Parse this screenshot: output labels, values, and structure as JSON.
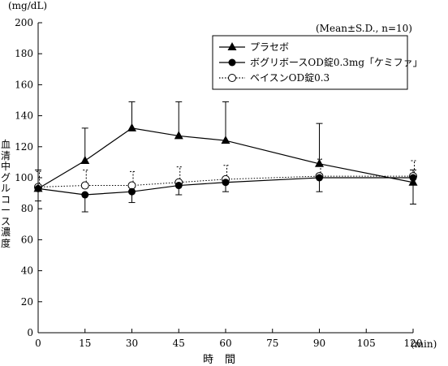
{
  "chart_data": {
    "type": "line",
    "xlabel": "時間",
    "x_unit": "(min)",
    "ylabel": "血清中グルコース濃度",
    "y_unit": "(mg/dL)",
    "note": "(Mean±S.D., n=10)",
    "xlim": [
      0,
      120
    ],
    "ylim": [
      0,
      200
    ],
    "x_ticks": [
      0,
      15,
      30,
      45,
      60,
      75,
      90,
      105,
      120
    ],
    "y_ticks": [
      0,
      20,
      40,
      60,
      80,
      100,
      120,
      140,
      160,
      180,
      200
    ],
    "grid": false,
    "legend_position": "top-right",
    "series": [
      {
        "name": "プラセボ",
        "marker": "filled-triangle",
        "line": "solid",
        "x": [
          0,
          15,
          30,
          45,
          60,
          90,
          120
        ],
        "y": [
          93,
          111,
          132,
          127,
          124,
          109,
          97
        ],
        "sd": [
          12,
          21,
          17,
          22,
          25,
          26,
          8
        ]
      },
      {
        "name": "ボグリボースOD錠0.3mg「ケミファ」",
        "marker": "filled-circle",
        "line": "solid",
        "x": [
          0,
          15,
          30,
          45,
          60,
          90,
          120
        ],
        "y": [
          93,
          89,
          91,
          95,
          97,
          100,
          100
        ],
        "sd": [
          8,
          11,
          7,
          6,
          6,
          9,
          17
        ]
      },
      {
        "name": "ベイスンOD錠0.3",
        "marker": "open-circle",
        "line": "dotted",
        "x": [
          0,
          15,
          30,
          45,
          60,
          90,
          120
        ],
        "y": [
          94,
          95,
          95,
          97,
          99,
          101,
          101
        ],
        "sd": [
          10,
          10,
          9,
          10,
          9,
          11,
          10
        ]
      }
    ]
  }
}
